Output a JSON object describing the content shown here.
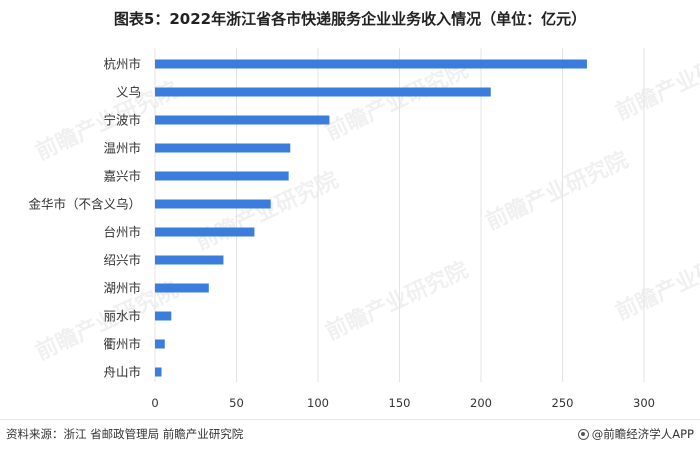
{
  "title": "图表5：2022年浙江省各市快递服务企业业务收入情况（单位：亿元）",
  "source": "资料来源：浙江 省邮政管理局 前瞻产业研究院",
  "brand": "@前瞻经济学人APP",
  "watermark": "前瞻产业研究院",
  "colors": {
    "bar": "#3b7ddd",
    "grid": "#e3e3e3",
    "axis": "#333333"
  },
  "chart_data": {
    "type": "bar",
    "orientation": "horizontal",
    "categories": [
      "杭州市",
      "义乌",
      "宁波市",
      "温州市",
      "嘉兴市",
      "金华市（不含义乌）",
      "台州市",
      "绍兴市",
      "湖州市",
      "丽水市",
      "衢州市",
      "舟山市"
    ],
    "values": [
      265,
      206,
      107,
      83,
      82,
      71,
      61,
      42,
      33,
      10,
      6,
      4
    ],
    "xlim": [
      0,
      300
    ],
    "xticks": [
      0,
      50,
      100,
      150,
      200,
      250,
      300
    ],
    "grid": true,
    "title": "图表5：2022年浙江省各市快递服务企业业务收入情况（单位：亿元）"
  }
}
